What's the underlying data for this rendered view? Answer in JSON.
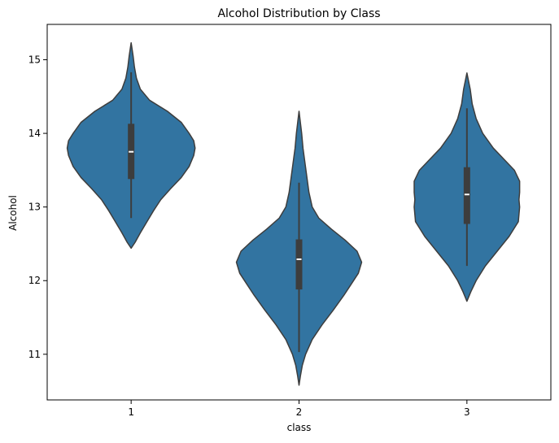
{
  "chart_data": {
    "type": "violin",
    "title": "Alcohol Distribution by Class",
    "xlabel": "class",
    "ylabel": "Alcohol",
    "categories": [
      "1",
      "2",
      "3"
    ],
    "ylim": [
      10.38,
      15.48
    ],
    "yticks": [
      11,
      12,
      13,
      14,
      15
    ],
    "grid": false,
    "legend": "none",
    "fill_color": "#3274a1",
    "edge_color": "#3d3d3d",
    "violins": [
      {
        "category": "1",
        "range": [
          12.44,
          15.23
        ],
        "whisker": [
          12.85,
          14.83
        ],
        "q1": 13.38,
        "median": 13.75,
        "q3": 14.13,
        "density": [
          [
            12.44,
            0.0
          ],
          [
            12.52,
            0.06
          ],
          [
            12.65,
            0.14
          ],
          [
            12.8,
            0.24
          ],
          [
            12.95,
            0.34
          ],
          [
            13.1,
            0.45
          ],
          [
            13.25,
            0.6
          ],
          [
            13.4,
            0.76
          ],
          [
            13.55,
            0.88
          ],
          [
            13.7,
            0.95
          ],
          [
            13.8,
            0.97
          ],
          [
            13.9,
            0.95
          ],
          [
            14.0,
            0.88
          ],
          [
            14.15,
            0.76
          ],
          [
            14.3,
            0.55
          ],
          [
            14.45,
            0.28
          ],
          [
            14.6,
            0.14
          ],
          [
            14.75,
            0.08
          ],
          [
            14.9,
            0.05
          ],
          [
            15.05,
            0.03
          ],
          [
            15.23,
            0.0
          ]
        ]
      },
      {
        "category": "2",
        "range": [
          10.58,
          14.3
        ],
        "whisker": [
          11.03,
          13.33
        ],
        "q1": 11.88,
        "median": 12.29,
        "q3": 12.56,
        "density": [
          [
            10.58,
            0.0
          ],
          [
            10.7,
            0.02
          ],
          [
            10.85,
            0.05
          ],
          [
            11.0,
            0.1
          ],
          [
            11.2,
            0.2
          ],
          [
            11.4,
            0.35
          ],
          [
            11.6,
            0.52
          ],
          [
            11.8,
            0.68
          ],
          [
            11.95,
            0.79
          ],
          [
            12.1,
            0.9
          ],
          [
            12.25,
            0.95
          ],
          [
            12.4,
            0.88
          ],
          [
            12.55,
            0.7
          ],
          [
            12.7,
            0.49
          ],
          [
            12.85,
            0.3
          ],
          [
            13.0,
            0.2
          ],
          [
            13.2,
            0.15
          ],
          [
            13.4,
            0.12
          ],
          [
            13.6,
            0.09
          ],
          [
            13.8,
            0.06
          ],
          [
            14.0,
            0.04
          ],
          [
            14.15,
            0.02
          ],
          [
            14.3,
            0.0
          ]
        ]
      },
      {
        "category": "3",
        "range": [
          11.72,
          14.82
        ],
        "whisker": [
          12.2,
          14.34
        ],
        "q1": 12.77,
        "median": 13.17,
        "q3": 13.54,
        "density": [
          [
            11.72,
            0.0
          ],
          [
            11.85,
            0.06
          ],
          [
            12.0,
            0.14
          ],
          [
            12.2,
            0.28
          ],
          [
            12.4,
            0.46
          ],
          [
            12.6,
            0.64
          ],
          [
            12.8,
            0.78
          ],
          [
            13.0,
            0.8
          ],
          [
            13.1,
            0.79
          ],
          [
            13.2,
            0.8
          ],
          [
            13.35,
            0.8
          ],
          [
            13.5,
            0.72
          ],
          [
            13.65,
            0.56
          ],
          [
            13.8,
            0.4
          ],
          [
            14.0,
            0.24
          ],
          [
            14.2,
            0.14
          ],
          [
            14.4,
            0.08
          ],
          [
            14.6,
            0.05
          ],
          [
            14.82,
            0.0
          ]
        ]
      }
    ]
  }
}
